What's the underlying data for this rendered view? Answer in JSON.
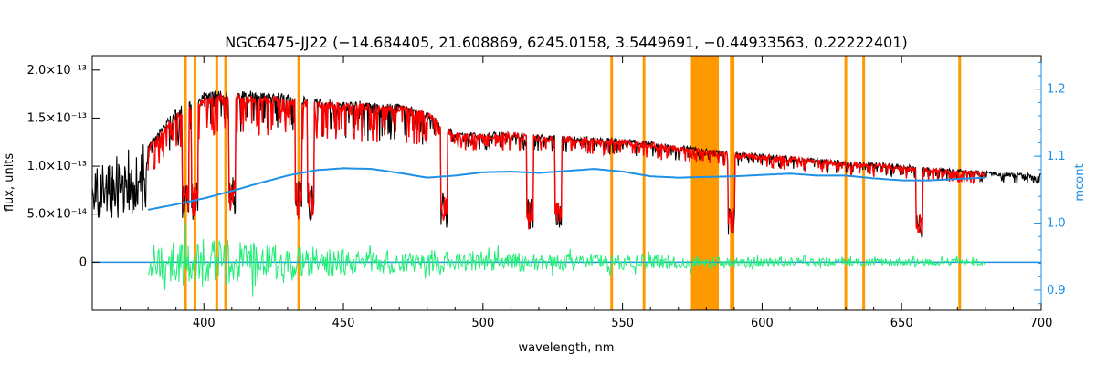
{
  "chart_data": {
    "type": "line",
    "title": "NGC6475-JJ22   (−14.684405, 21.608869, 6245.0158, 3.5449691, −0.44933563, 0.22222401)",
    "xlabel": "wavelength, nm",
    "ylabel": "flux, units",
    "ylabel_right": "mcont",
    "xlim": [
      360,
      700
    ],
    "ylim": [
      -5e-14,
      2.15e-13
    ],
    "ylim_right": [
      0.87,
      1.25
    ],
    "x_ticks": [
      400,
      450,
      500,
      550,
      600,
      650,
      700
    ],
    "y_tick_labels": [
      {
        "value": 0,
        "label": "0"
      },
      {
        "value": 5e-14,
        "label": "5.0×10⁻¹⁴"
      },
      {
        "value": 1e-13,
        "label": "1.0×10⁻¹³"
      },
      {
        "value": 1.5e-13,
        "label": "1.5×10⁻¹³"
      },
      {
        "value": 2e-13,
        "label": "2.0×10⁻¹³"
      }
    ],
    "y_right_ticks": [
      {
        "value": 0.9,
        "label": "0.9"
      },
      {
        "value": 1.0,
        "label": "1.0"
      },
      {
        "value": 1.1,
        "label": "1.1"
      },
      {
        "value": 1.2,
        "label": "1.2"
      }
    ],
    "masked_lines_nm": [
      393.4,
      396.8,
      404.6,
      407.8,
      434.0,
      546.1,
      557.7,
      589.0,
      589.6,
      630.0,
      636.4,
      670.8
    ],
    "masked_band_nm": [
      574.5,
      584.5
    ],
    "series": [
      {
        "color": "#000000",
        "x": [
          360,
          370,
          380,
          390,
          400,
          410,
          420,
          430,
          440,
          450,
          460,
          470,
          480,
          490,
          500,
          510,
          520,
          530,
          540,
          550,
          560,
          570,
          580,
          590,
          600,
          610,
          620,
          630,
          640,
          650,
          660,
          670,
          680,
          690,
          700
        ],
        "y": [
          9.5e-14,
          1.15e-13,
          1.25e-13,
          1.6e-13,
          1.78e-13,
          1.8e-13,
          1.78e-13,
          1.75e-13,
          1.71e-13,
          1.68e-13,
          1.68e-13,
          1.66e-13,
          1.58e-13,
          1.36e-13,
          1.35e-13,
          1.36e-13,
          1.33e-13,
          1.32e-13,
          1.3e-13,
          1.29e-13,
          1.26e-13,
          1.22e-13,
          1.18e-13,
          1.15e-13,
          1.13e-13,
          1.11e-13,
          1.08e-13,
          1.06e-13,
          1.04e-13,
          1.02e-13,
          9.9e-14,
          9.7e-14,
          9.5e-14,
          9.3e-14,
          9.2e-14
        ]
      },
      {
        "color": "#ff0000",
        "x": [
          380,
          390,
          400,
          410,
          420,
          430,
          440,
          450,
          460,
          470,
          480,
          490,
          500,
          510,
          520,
          530,
          540,
          550,
          560,
          570,
          580,
          590,
          600,
          610,
          620,
          630,
          640,
          650,
          660,
          670,
          680
        ],
        "y": [
          1.2e-13,
          1.55e-13,
          1.72e-13,
          1.76e-13,
          1.74e-13,
          1.72e-13,
          1.69e-13,
          1.66e-13,
          1.66e-13,
          1.64e-13,
          1.57e-13,
          1.35e-13,
          1.34e-13,
          1.35e-13,
          1.32e-13,
          1.31e-13,
          1.29e-13,
          1.28e-13,
          1.25e-13,
          1.21e-13,
          1.17e-13,
          1.14e-13,
          1.12e-13,
          1.1e-13,
          1.07e-13,
          1.05e-13,
          1.03e-13,
          1.01e-13,
          9.8e-14,
          9.6e-14,
          9.4e-14
        ]
      },
      {
        "color": "#1e90e6",
        "axis": "right",
        "x": [
          380,
          390,
          400,
          410,
          420,
          430,
          440,
          450,
          460,
          470,
          480,
          490,
          500,
          510,
          520,
          530,
          540,
          550,
          560,
          570,
          580,
          590,
          600,
          610,
          620,
          630,
          640,
          650,
          660,
          670,
          680
        ],
        "y": [
          1.02,
          1.028,
          1.037,
          1.048,
          1.06,
          1.071,
          1.079,
          1.082,
          1.081,
          1.075,
          1.068,
          1.071,
          1.076,
          1.077,
          1.075,
          1.078,
          1.081,
          1.077,
          1.07,
          1.068,
          1.069,
          1.07,
          1.072,
          1.074,
          1.071,
          1.071,
          1.067,
          1.064,
          1.064,
          1.066,
          1.068
        ]
      },
      {
        "color": "#22ee77",
        "x": [
          380,
          390,
          400,
          410,
          420,
          430,
          440,
          450,
          460,
          470,
          480,
          490,
          500,
          510,
          520,
          530,
          540,
          550,
          560,
          570,
          580,
          590,
          600,
          610,
          620,
          630,
          640,
          650,
          660,
          670,
          680
        ],
        "amplitude": [
          1.3e-14,
          2.4e-14,
          2.6e-14,
          2.4e-14,
          2e-14,
          1.8e-14,
          1.6e-14,
          1.4e-14,
          1.3e-14,
          1.2e-14,
          1.1e-14,
          1e-14,
          1e-14,
          1e-14,
          9e-15,
          9e-15,
          9e-15,
          8e-15,
          8e-15,
          7e-15,
          6e-15,
          6e-15,
          5e-15,
          5e-15,
          5e-15,
          4e-15,
          4e-15,
          4e-15,
          4e-15,
          4e-15,
          3e-15
        ]
      }
    ],
    "zero_line": {
      "color": "#1e90e6",
      "y": 0
    }
  }
}
